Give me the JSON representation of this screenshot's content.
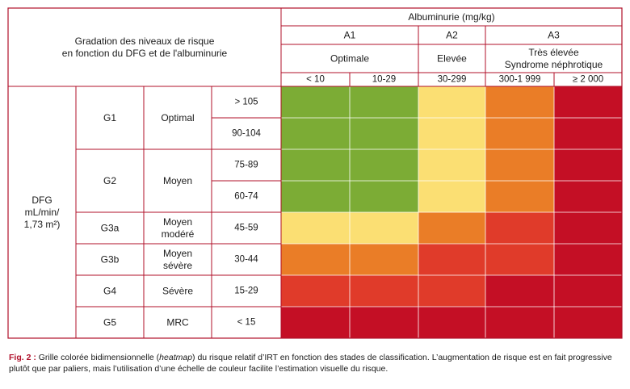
{
  "chart_data": {
    "type": "heatmap",
    "title": "",
    "corner_label_lines": [
      "Gradation des niveaux de risque",
      "en fonction du DFG et de l'albuminurie"
    ],
    "albuminuria_title": "Albuminurie (mg/kg)",
    "albuminuria_categories": [
      {
        "code": "A1",
        "name_lines": [
          "Optimale"
        ],
        "ranges": [
          "< 10",
          "10-29"
        ]
      },
      {
        "code": "A2",
        "name_lines": [
          "Elevée"
        ],
        "ranges": [
          "30-299"
        ]
      },
      {
        "code": "A3",
        "name_lines": [
          "Très élevée",
          "Syndrome néphrotique"
        ],
        "ranges": [
          "300-1 999",
          "≥ 2 000"
        ]
      }
    ],
    "dfg_label_lines": [
      "DFG",
      "mL/min/",
      "1,73 m²)"
    ],
    "dfg_stages": [
      {
        "code": "G1",
        "name_lines": [
          "Optimal"
        ],
        "ranges": [
          "> 105",
          "90-104"
        ]
      },
      {
        "code": "G2",
        "name_lines": [
          "Moyen"
        ],
        "ranges": [
          "75-89",
          "60-74"
        ]
      },
      {
        "code": "G3a",
        "name_lines": [
          "Moyen",
          "modéré"
        ],
        "ranges": [
          "45-59"
        ]
      },
      {
        "code": "G3b",
        "name_lines": [
          "Moyen",
          "sévère"
        ],
        "ranges": [
          "30-44"
        ]
      },
      {
        "code": "G4",
        "name_lines": [
          "Sévère"
        ],
        "ranges": [
          "15-29"
        ]
      },
      {
        "code": "G5",
        "name_lines": [
          "MRC"
        ],
        "ranges": [
          "< 15"
        ]
      }
    ],
    "risk_colors": {
      "1": "#7cac35",
      "2": "#fbdf73",
      "3": "#ea7d27",
      "4": "#e03b2a",
      "5": "#c40f25"
    },
    "risk_matrix": [
      [
        1,
        1,
        2,
        3,
        5
      ],
      [
        1,
        1,
        2,
        3,
        5
      ],
      [
        1,
        1,
        2,
        3,
        5
      ],
      [
        1,
        1,
        2,
        3,
        5
      ],
      [
        2,
        2,
        3,
        4,
        5
      ],
      [
        3,
        3,
        4,
        4,
        5
      ],
      [
        4,
        4,
        4,
        5,
        5
      ],
      [
        5,
        5,
        5,
        5,
        5
      ]
    ]
  },
  "caption": {
    "label": "Fig. 2 :",
    "text_before": " Grille colorée bidimensionnelle (",
    "emphasis": "heatmap",
    "text_after": ") du risque relatif d’IRT en fonction des stades de classification. L’augmentation de risque est en fait progressive plutôt que par paliers, mais l’utilisation d’une échelle de couleur facilite l’estimation visuelle du risque."
  }
}
